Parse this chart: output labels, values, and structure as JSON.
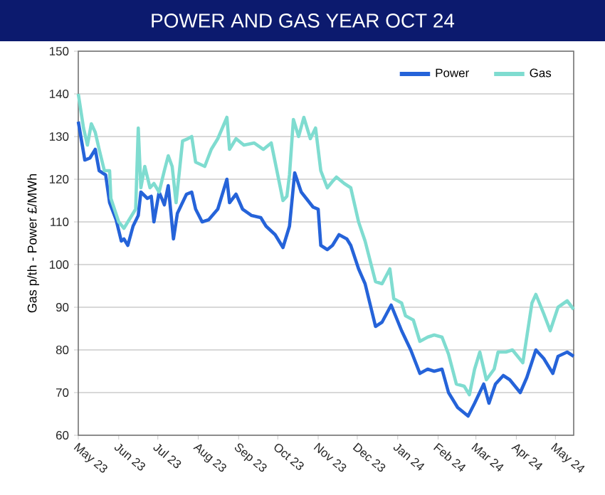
{
  "chart_data": {
    "type": "line",
    "title": "POWER AND GAS YEAR OCT 24",
    "ylabel": "Gas p/th - Power £/MWh",
    "xlim": [
      "2023-05-01",
      "2024-05-15"
    ],
    "ylim": [
      60,
      150
    ],
    "yticks": [
      60,
      70,
      80,
      90,
      100,
      110,
      120,
      130,
      140,
      150
    ],
    "xticks": [
      {
        "value": "2023-05-01",
        "label": "May 23"
      },
      {
        "value": "2023-06-01",
        "label": "Jun 23"
      },
      {
        "value": "2023-07-01",
        "label": "Jul 23"
      },
      {
        "value": "2023-08-01",
        "label": "Aug 23"
      },
      {
        "value": "2023-09-01",
        "label": "Sep 23"
      },
      {
        "value": "2023-10-01",
        "label": "Oct 23"
      },
      {
        "value": "2023-11-01",
        "label": "Nov 23"
      },
      {
        "value": "2023-12-01",
        "label": "Dec 23"
      },
      {
        "value": "2024-01-01",
        "label": "Jan 24"
      },
      {
        "value": "2024-02-01",
        "label": "Feb 24"
      },
      {
        "value": "2024-03-01",
        "label": "Mar 24"
      },
      {
        "value": "2024-04-01",
        "label": "Apr 24"
      },
      {
        "value": "2024-05-01",
        "label": "May 24"
      }
    ],
    "grid": "y",
    "legend": "top right",
    "series": [
      {
        "name": "Power",
        "color": "#2563d9",
        "x": [
          "2023-05-01",
          "2023-05-06",
          "2023-05-10",
          "2023-05-14",
          "2023-05-17",
          "2023-05-22",
          "2023-05-25",
          "2023-05-30",
          "2023-06-03",
          "2023-06-05",
          "2023-06-08",
          "2023-06-12",
          "2023-06-16",
          "2023-06-18",
          "2023-06-23",
          "2023-06-26",
          "2023-06-28",
          "2023-07-02",
          "2023-07-06",
          "2023-07-09",
          "2023-07-13",
          "2023-07-16",
          "2023-07-23",
          "2023-07-27",
          "2023-07-30",
          "2023-08-04",
          "2023-08-09",
          "2023-08-16",
          "2023-08-23",
          "2023-08-25",
          "2023-08-30",
          "2023-09-04",
          "2023-09-11",
          "2023-09-18",
          "2023-09-22",
          "2023-09-29",
          "2023-10-05",
          "2023-10-10",
          "2023-10-14",
          "2023-10-19",
          "2023-10-28",
          "2023-11-01",
          "2023-11-03",
          "2023-11-08",
          "2023-11-12",
          "2023-11-17",
          "2023-11-23",
          "2023-11-26",
          "2023-12-02",
          "2023-12-07",
          "2023-12-15",
          "2023-12-20",
          "2023-12-27",
          "2024-01-04",
          "2024-01-11",
          "2024-01-18",
          "2024-01-24",
          "2024-01-29",
          "2024-02-04",
          "2024-02-09",
          "2024-02-16",
          "2024-02-24",
          "2024-02-29",
          "2024-03-07",
          "2024-03-11",
          "2024-03-16",
          "2024-03-22",
          "2024-03-27",
          "2024-04-04",
          "2024-04-09",
          "2024-04-16",
          "2024-04-22",
          "2024-04-29",
          "2024-05-03",
          "2024-05-10",
          "2024-05-15"
        ],
        "values": [
          133.5,
          124.5,
          125,
          127,
          122,
          121,
          114.5,
          110.5,
          105.5,
          106,
          104.5,
          109,
          111.5,
          117,
          115.5,
          116,
          110,
          117,
          114,
          118.5,
          106,
          112,
          116.5,
          117,
          113,
          110,
          110.5,
          113,
          120,
          114.5,
          116.5,
          113,
          111.5,
          111,
          109,
          107,
          104,
          109,
          121.5,
          117,
          113.5,
          113,
          104.5,
          103.5,
          104.5,
          107,
          106,
          104.5,
          99,
          95.5,
          85.5,
          86.5,
          90.5,
          84.5,
          80,
          74.5,
          75.5,
          75,
          75.5,
          70,
          66.5,
          64.5,
          67.5,
          72,
          67.5,
          72,
          74,
          73,
          70,
          73.5,
          80,
          78,
          74.5,
          78.5,
          79.5,
          78.5
        ]
      },
      {
        "name": "Gas",
        "color": "#7fdcd0",
        "x": [
          "2023-05-01",
          "2023-05-05",
          "2023-05-08",
          "2023-05-11",
          "2023-05-14",
          "2023-05-17",
          "2023-05-21",
          "2023-05-25",
          "2023-05-26",
          "2023-06-01",
          "2023-06-05",
          "2023-06-10",
          "2023-06-14",
          "2023-06-16",
          "2023-06-18",
          "2023-06-21",
          "2023-06-25",
          "2023-06-28",
          "2023-07-02",
          "2023-07-06",
          "2023-07-09",
          "2023-07-12",
          "2023-07-15",
          "2023-07-20",
          "2023-07-24",
          "2023-07-27",
          "2023-07-30",
          "2023-08-06",
          "2023-08-11",
          "2023-08-16",
          "2023-08-23",
          "2023-08-25",
          "2023-08-30",
          "2023-09-05",
          "2023-09-13",
          "2023-09-20",
          "2023-09-26",
          "2023-10-01",
          "2023-10-05",
          "2023-10-08",
          "2023-10-10",
          "2023-10-13",
          "2023-10-17",
          "2023-10-21",
          "2023-10-26",
          "2023-10-30",
          "2023-11-03",
          "2023-11-08",
          "2023-11-12",
          "2023-11-15",
          "2023-11-21",
          "2023-11-26",
          "2023-12-02",
          "2023-12-07",
          "2023-12-15",
          "2023-12-20",
          "2023-12-26",
          "2023-12-29",
          "2024-01-04",
          "2024-01-07",
          "2024-01-13",
          "2024-01-18",
          "2024-01-24",
          "2024-01-29",
          "2024-02-04",
          "2024-02-09",
          "2024-02-15",
          "2024-02-21",
          "2024-02-25",
          "2024-02-29",
          "2024-03-04",
          "2024-03-09",
          "2024-03-15",
          "2024-03-18",
          "2024-03-24",
          "2024-03-29",
          "2024-04-06",
          "2024-04-13",
          "2024-04-16",
          "2024-04-22",
          "2024-04-27",
          "2024-05-03",
          "2024-05-10",
          "2024-05-15"
        ],
        "values": [
          140,
          132,
          128,
          133,
          131,
          127,
          122,
          122,
          115.5,
          110,
          108.5,
          111,
          113,
          132,
          118,
          123,
          118,
          119,
          117,
          122,
          125.5,
          123,
          114.5,
          129,
          129.5,
          130,
          124,
          123,
          127,
          129.5,
          134.5,
          127,
          129.5,
          128,
          128.5,
          127,
          128.5,
          121,
          115,
          116,
          121,
          134,
          130,
          134.5,
          129.5,
          132,
          122,
          118,
          119.5,
          120.5,
          119,
          118,
          110,
          105.5,
          96,
          95.5,
          99,
          92,
          91,
          88,
          87,
          82,
          83,
          83.5,
          83,
          79,
          72,
          71.5,
          69.5,
          75.5,
          79.5,
          73,
          75.5,
          79.5,
          79.5,
          80,
          77,
          91,
          93,
          88.5,
          84.5,
          90,
          91.5,
          89.5
        ]
      }
    ]
  }
}
